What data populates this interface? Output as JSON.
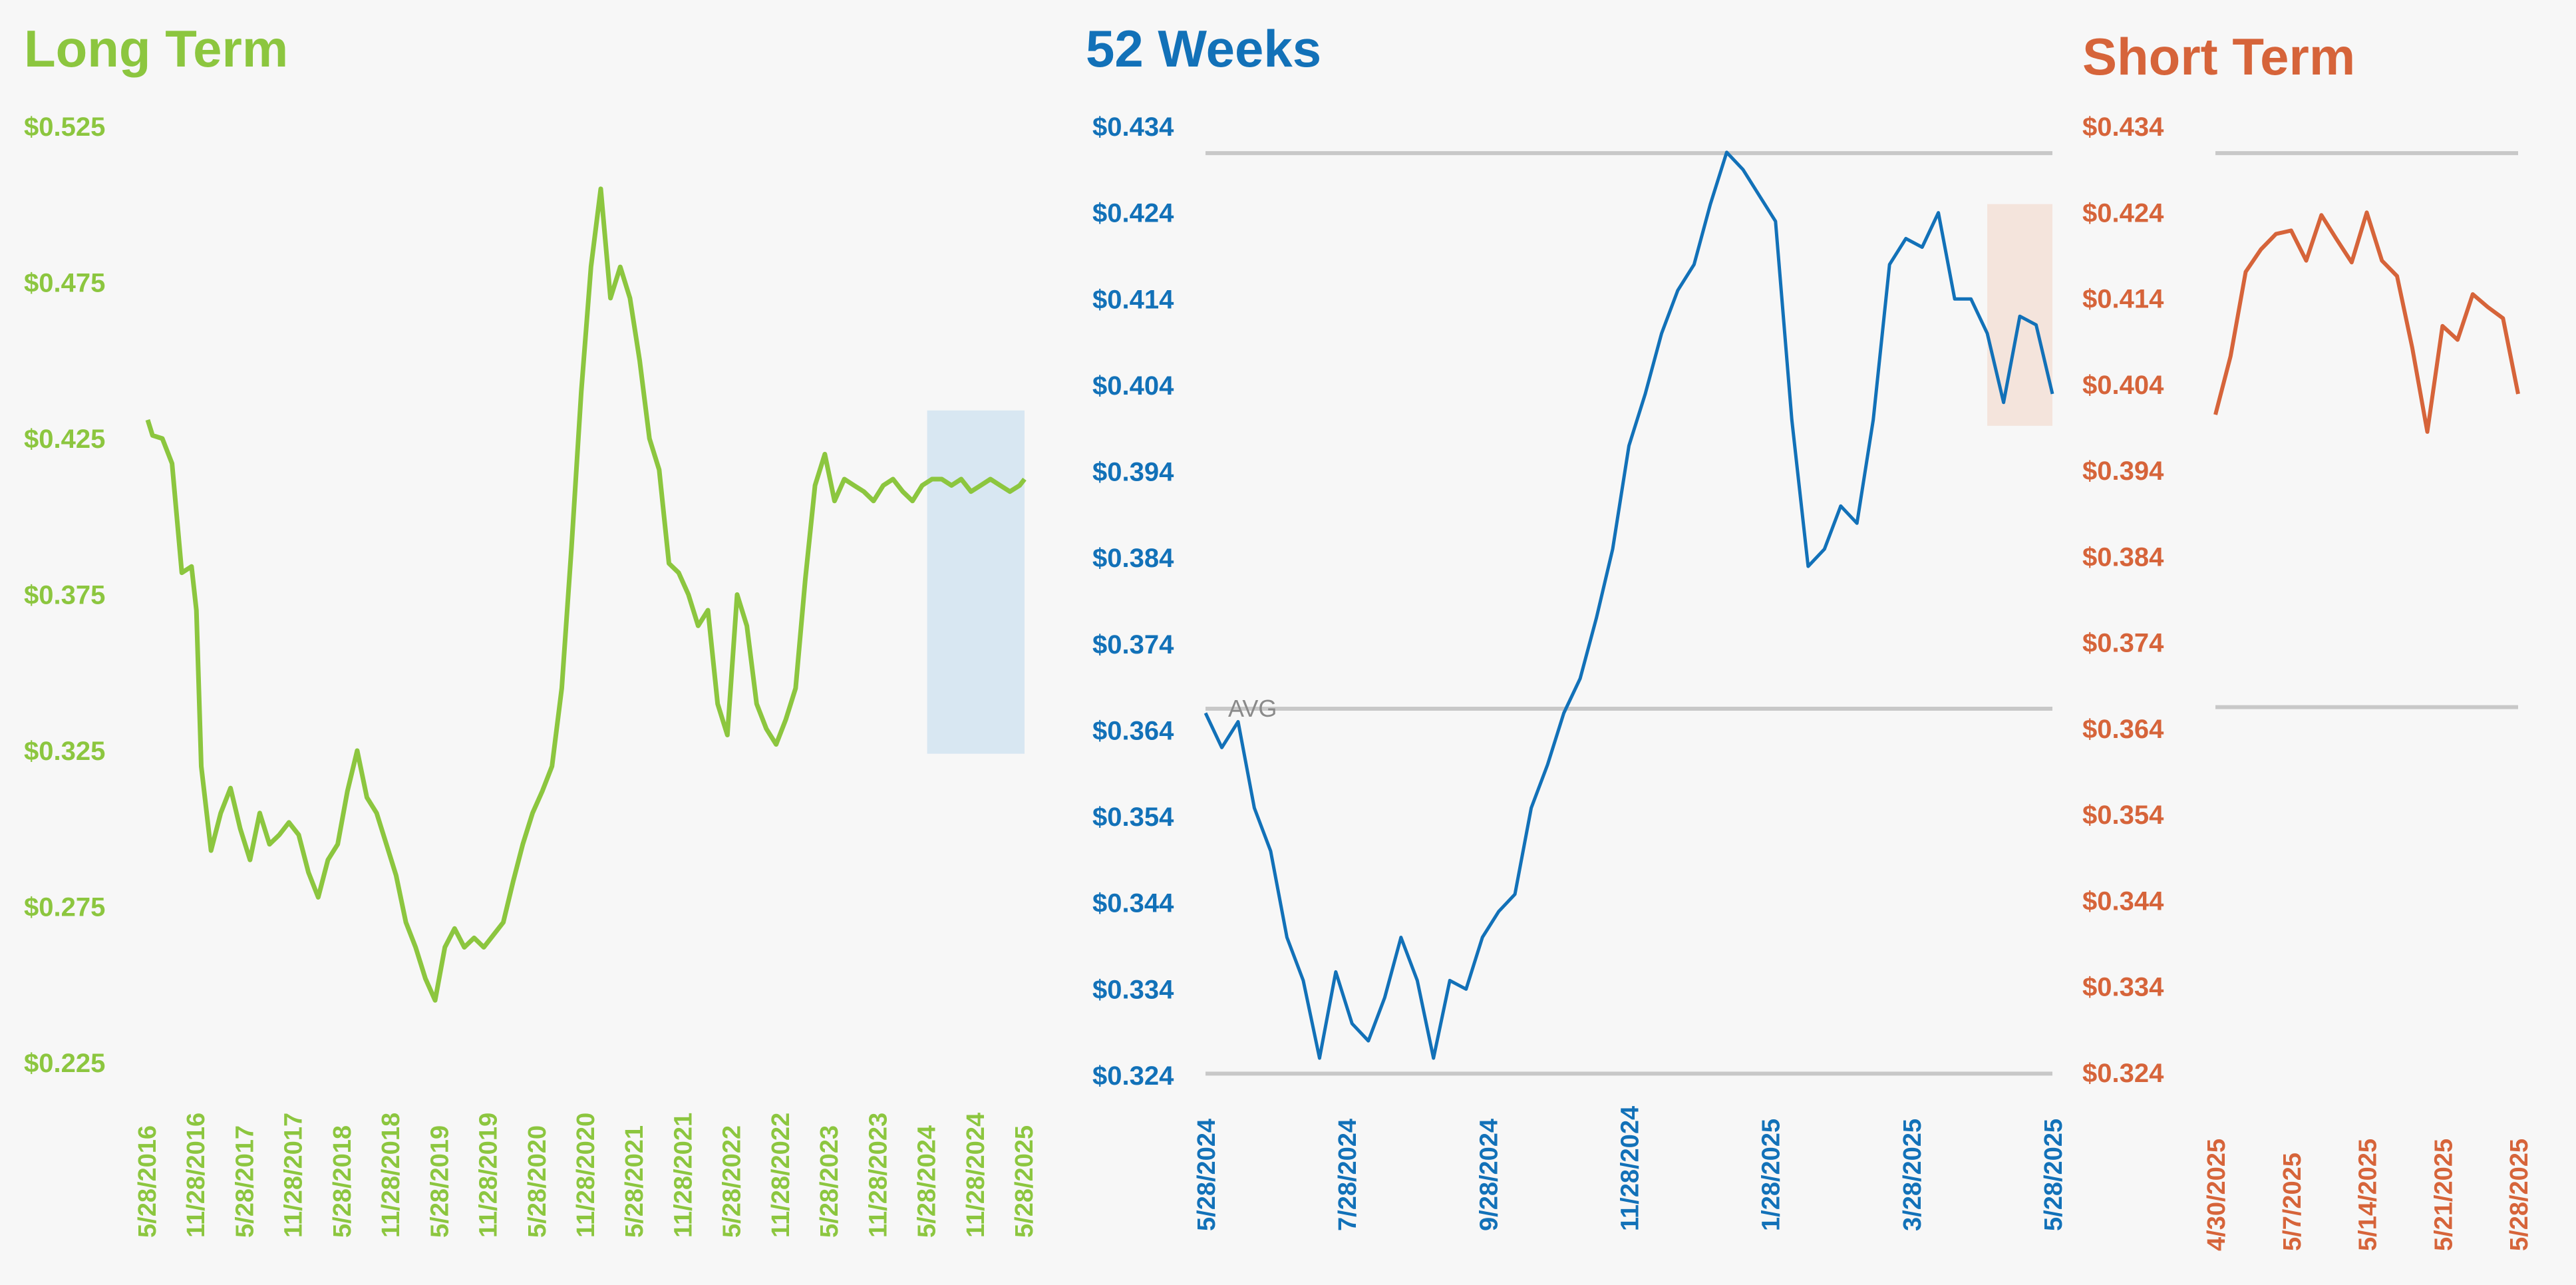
{
  "colors": {
    "long_term": "#8cc63f",
    "weeks52": "#1271b8",
    "short_term": "#d6643a",
    "grid": "#c8c8c8",
    "highlight_blue": "#d8e7f2",
    "highlight_peach": "#f4e4dc"
  },
  "chart_data": [
    {
      "type": "line",
      "title": "Long Term",
      "ylim": [
        0.225,
        0.525
      ],
      "ytick_labels": [
        "$0.525",
        "$0.475",
        "$0.425",
        "$0.375",
        "$0.325",
        "$0.275",
        "$0.225"
      ],
      "ytick_values": [
        0.525,
        0.475,
        0.425,
        0.375,
        0.325,
        0.275,
        0.225
      ],
      "xtick_labels": [
        "5/28/2016",
        "11/28/2016",
        "5/28/2017",
        "11/28/2017",
        "5/28/2018",
        "11/28/2018",
        "5/28/2019",
        "11/28/2019",
        "5/28/2020",
        "11/28/2020",
        "5/28/2021",
        "11/28/2021",
        "5/28/2022",
        "11/28/2022",
        "5/28/2023",
        "11/28/2023",
        "5/28/2024",
        "11/28/2024",
        "5/28/2025"
      ],
      "highlight": {
        "from": "5/28/2024",
        "to": "5/28/2025",
        "ymin": 0.324,
        "ymax": 0.434
      },
      "grid": false,
      "series": [
        {
          "x": [
            0,
            0.1,
            0.3,
            0.5,
            0.7,
            0.9,
            1.0,
            1.1,
            1.3,
            1.5,
            1.7,
            1.9,
            2.1,
            2.3,
            2.5,
            2.7,
            2.9,
            3.1,
            3.3,
            3.5,
            3.7,
            3.9,
            4.1,
            4.3,
            4.5,
            4.7,
            4.9,
            5.1,
            5.3,
            5.5,
            5.7,
            5.9,
            6.1,
            6.3,
            6.5,
            6.7,
            6.9,
            7.1,
            7.3,
            7.5,
            7.7,
            7.9,
            8.1,
            8.3,
            8.5,
            8.7,
            8.9,
            9.1,
            9.3,
            9.5,
            9.7,
            9.9,
            10.1,
            10.3,
            10.5,
            10.7,
            10.9,
            11.1,
            11.3,
            11.5,
            11.7,
            11.9,
            12.1,
            12.3,
            12.5,
            12.7,
            12.9,
            13.1,
            13.3,
            13.5,
            13.7,
            13.9,
            14.1,
            14.3,
            14.5,
            14.7,
            14.9,
            15.1,
            15.3,
            15.5,
            15.7,
            15.9,
            16.1,
            16.3,
            16.5,
            16.7,
            16.9,
            17.1,
            17.3,
            17.5,
            17.7,
            17.9,
            18.0
          ],
          "values": [
            0.431,
            0.426,
            0.425,
            0.417,
            0.382,
            0.384,
            0.37,
            0.32,
            0.293,
            0.305,
            0.313,
            0.3,
            0.29,
            0.305,
            0.295,
            0.298,
            0.302,
            0.298,
            0.286,
            0.278,
            0.29,
            0.295,
            0.312,
            0.325,
            0.31,
            0.305,
            0.295,
            0.285,
            0.27,
            0.262,
            0.252,
            0.245,
            0.262,
            0.268,
            0.262,
            0.265,
            0.262,
            0.266,
            0.27,
            0.283,
            0.295,
            0.305,
            0.312,
            0.32,
            0.345,
            0.39,
            0.44,
            0.48,
            0.505,
            0.47,
            0.48,
            0.47,
            0.45,
            0.425,
            0.415,
            0.385,
            0.382,
            0.375,
            0.365,
            0.37,
            0.34,
            0.33,
            0.375,
            0.365,
            0.34,
            0.332,
            0.327,
            0.335,
            0.345,
            0.38,
            0.41,
            0.42,
            0.405,
            0.412,
            0.41,
            0.408,
            0.405,
            0.41,
            0.412,
            0.408,
            0.405,
            0.41,
            0.412,
            0.412,
            0.41,
            0.412,
            0.408,
            0.41,
            0.412,
            0.41,
            0.408,
            0.41,
            0.412
          ]
        }
      ]
    },
    {
      "type": "line",
      "title": "52 Weeks",
      "ylim": [
        0.324,
        0.434
      ],
      "ytick_labels": [
        "$0.434",
        "$0.424",
        "$0.414",
        "$0.404",
        "$0.394",
        "$0.384",
        "$0.374",
        "$0.364",
        "$0.354",
        "$0.344",
        "$0.334",
        "$0.324"
      ],
      "ytick_values": [
        0.434,
        0.424,
        0.414,
        0.404,
        0.394,
        0.384,
        0.374,
        0.364,
        0.354,
        0.344,
        0.334,
        0.324
      ],
      "xtick_labels": [
        "5/28/2024",
        "7/28/2024",
        "9/28/2024",
        "11/28/2024",
        "1/28/2025",
        "3/28/2025",
        "5/28/2025"
      ],
      "avg_label": "AVG",
      "avg_value": 0.3665,
      "max_line_value": 0.4309,
      "min_line_value": 0.3242,
      "highlight": {
        "from": "4/30/2025",
        "to": "5/28/2025",
        "ymin": 0.3993,
        "ymax": 0.425
      },
      "series": [
        {
          "x": [
            0,
            1,
            2,
            3,
            4,
            5,
            6,
            7,
            8,
            9,
            10,
            11,
            12,
            13,
            14,
            15,
            16,
            17,
            18,
            19,
            20,
            21,
            22,
            23,
            24,
            25,
            26,
            27,
            28,
            29,
            30,
            31,
            32,
            33,
            34,
            35,
            36,
            37,
            38,
            39,
            40,
            41,
            42,
            43,
            44,
            45,
            46,
            47,
            48,
            49,
            50,
            51,
            52
          ],
          "values": [
            0.366,
            0.362,
            0.365,
            0.355,
            0.35,
            0.34,
            0.335,
            0.326,
            0.336,
            0.33,
            0.328,
            0.333,
            0.34,
            0.335,
            0.326,
            0.335,
            0.334,
            0.34,
            0.343,
            0.345,
            0.355,
            0.36,
            0.366,
            0.37,
            0.377,
            0.385,
            0.397,
            0.403,
            0.41,
            0.415,
            0.418,
            0.425,
            0.431,
            0.429,
            0.426,
            0.423,
            0.4,
            0.383,
            0.385,
            0.39,
            0.388,
            0.4,
            0.418,
            0.421,
            0.42,
            0.424,
            0.414,
            0.414,
            0.41,
            0.402,
            0.412,
            0.411,
            0.403
          ]
        }
      ]
    },
    {
      "type": "line",
      "title": "Short Term",
      "ylim": [
        0.324,
        0.434
      ],
      "ytick_labels": [
        "$0.434",
        "$0.424",
        "$0.414",
        "$0.404",
        "$0.394",
        "$0.384",
        "$0.374",
        "$0.364",
        "$0.354",
        "$0.344",
        "$0.334",
        "$0.324"
      ],
      "ytick_values": [
        0.434,
        0.424,
        0.414,
        0.404,
        0.394,
        0.384,
        0.374,
        0.364,
        0.354,
        0.344,
        0.334,
        0.324
      ],
      "xtick_labels": [
        "4/30/2025",
        "5/7/2025",
        "5/14/2025",
        "5/21/2025",
        "5/28/2025"
      ],
      "max_line_value": 0.4309,
      "avg_value": 0.3665,
      "series": [
        {
          "x": [
            0,
            1,
            2,
            3,
            4,
            5,
            6,
            7,
            8,
            9,
            10,
            11,
            12,
            13,
            14,
            15,
            16,
            17,
            18,
            19,
            20
          ],
          "values": [
            0.4005,
            0.4073,
            0.4171,
            0.4197,
            0.4215,
            0.4219,
            0.4184,
            0.4237,
            0.4209,
            0.4182,
            0.424,
            0.4184,
            0.4166,
            0.4083,
            0.3985,
            0.4108,
            0.4092,
            0.4145,
            0.413,
            0.4117,
            0.4029
          ]
        }
      ]
    }
  ]
}
